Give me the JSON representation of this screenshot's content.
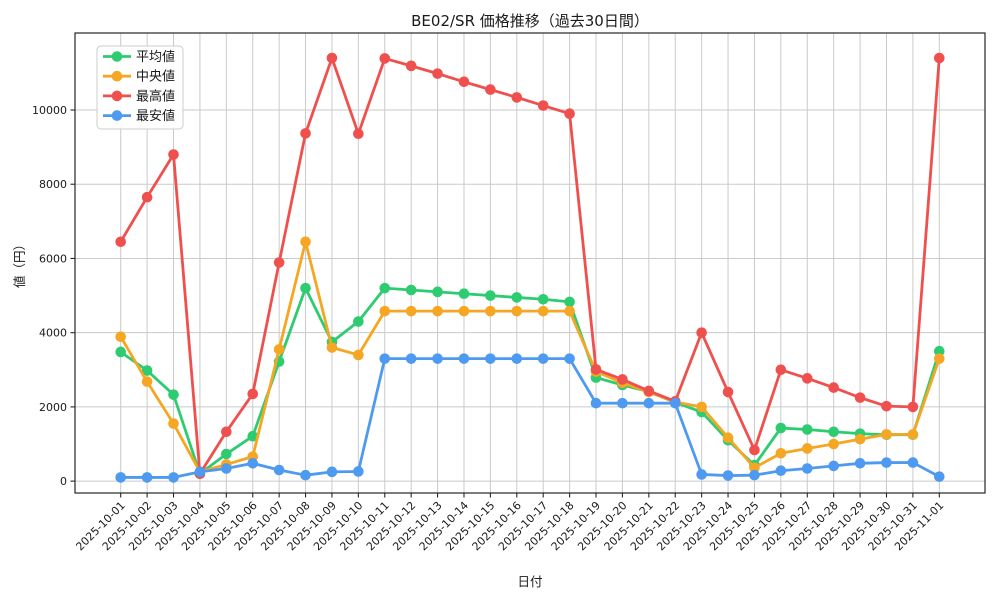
{
  "chart_data": {
    "type": "line",
    "title": "BE02/SR 価格推移（過去30日間）",
    "xlabel": "日付",
    "ylabel": "値（円）",
    "grid": true,
    "legend_position": "upper left",
    "ylim": [
      -320,
      12075
    ],
    "yticks": [
      0,
      2000,
      4000,
      6000,
      8000,
      10000
    ],
    "categories": [
      "2025-10-01",
      "2025-10-02",
      "2025-10-03",
      "2025-10-04",
      "2025-10-05",
      "2025-10-06",
      "2025-10-07",
      "2025-10-08",
      "2025-10-09",
      "2025-10-10",
      "2025-10-11",
      "2025-10-12",
      "2025-10-13",
      "2025-10-14",
      "2025-10-15",
      "2025-10-16",
      "2025-10-17",
      "2025-10-18",
      "2025-10-19",
      "2025-10-20",
      "2025-10-21",
      "2025-10-22",
      "2025-10-23",
      "2025-10-24",
      "2025-10-25",
      "2025-10-26",
      "2025-10-27",
      "2025-10-28",
      "2025-10-29",
      "2025-10-30",
      "2025-10-31",
      "2025-11-01"
    ],
    "series": [
      {
        "name": "平均値",
        "color": "#2ecc71",
        "values": [
          3480,
          2980,
          2330,
          200,
          730,
          1210,
          3220,
          5200,
          3750,
          4300,
          5200,
          5150,
          5100,
          5050,
          5000,
          4950,
          4900,
          4830,
          2790,
          2590,
          2410,
          2120,
          1860,
          1100,
          430,
          1430,
          1390,
          1330,
          1280,
          1250,
          1250,
          3500
        ]
      },
      {
        "name": "中央値",
        "color": "#f5a623",
        "values": [
          3890,
          2680,
          1550,
          250,
          450,
          660,
          3550,
          6450,
          3600,
          3400,
          4580,
          4580,
          4580,
          4580,
          4580,
          4580,
          4580,
          4580,
          2950,
          2650,
          2400,
          2130,
          2000,
          1170,
          360,
          750,
          880,
          1000,
          1130,
          1260,
          1260,
          3300
        ]
      },
      {
        "name": "最高値",
        "color": "#f0504d",
        "values": [
          6450,
          7650,
          8800,
          200,
          1330,
          2350,
          5890,
          9370,
          11400,
          9360,
          11390,
          11190,
          10980,
          10760,
          10550,
          10340,
          10120,
          9900,
          3010,
          2740,
          2430,
          2150,
          4000,
          2400,
          840,
          3000,
          2770,
          2520,
          2250,
          2020,
          2000,
          11400
        ]
      },
      {
        "name": "最安値",
        "color": "#4d9af0",
        "values": [
          100,
          100,
          100,
          250,
          340,
          480,
          300,
          160,
          250,
          260,
          3300,
          3300,
          3300,
          3300,
          3300,
          3300,
          3300,
          3300,
          2100,
          2100,
          2100,
          2100,
          180,
          150,
          160,
          280,
          340,
          410,
          480,
          500,
          500,
          120
        ]
      }
    ]
  }
}
